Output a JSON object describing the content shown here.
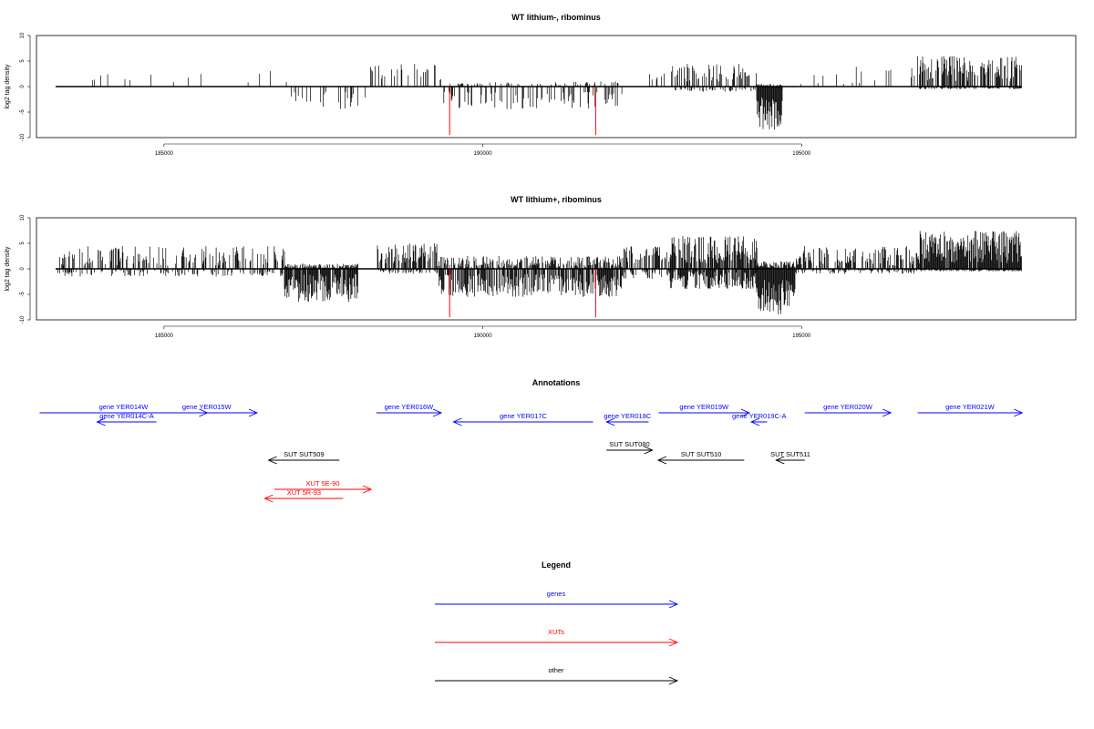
{
  "panels": [
    {
      "title": "WT lithium-, ribominus",
      "ylabel": "log2 tag density",
      "ylim": [
        -10,
        10
      ],
      "yticks": [
        10,
        5,
        0,
        -5,
        -10
      ],
      "xlim": [
        183000,
        199300
      ],
      "xticks": [
        185000,
        190000,
        195000
      ],
      "red_markers_x": [
        189480,
        191770
      ],
      "chart_data": {
        "type": "bar",
        "note_series": "dense tag-density bars, + strand above / - strand below",
        "segments": [
          {
            "start": 183300,
            "end": 186000,
            "pos": [
              0.5,
              3.5
            ],
            "neg": [
              0,
              0
            ],
            "density": 0.02
          },
          {
            "start": 186000,
            "end": 186950,
            "pos": [
              0.5,
              3.5
            ],
            "neg": [
              0,
              0
            ],
            "density": 0.02
          },
          {
            "start": 186950,
            "end": 188200,
            "pos": [
              0,
              0
            ],
            "neg": [
              -1,
              -4.5
            ],
            "density": 0.09
          },
          {
            "start": 188200,
            "end": 189350,
            "pos": [
              1,
              4.5
            ],
            "neg": [
              0,
              0
            ],
            "density": 0.12
          },
          {
            "start": 189350,
            "end": 192200,
            "pos": [
              0,
              1
            ],
            "neg": [
              -1,
              -4.5
            ],
            "density": 0.12
          },
          {
            "start": 192400,
            "end": 192950,
            "pos": [
              0.5,
              3.5
            ],
            "neg": [
              0,
              0
            ],
            "density": 0.06
          },
          {
            "start": 192950,
            "end": 194300,
            "pos": [
              1,
              4.5
            ],
            "neg": [
              0,
              -1
            ],
            "density": 0.16
          },
          {
            "start": 194300,
            "end": 194700,
            "pos": [
              0,
              0.5
            ],
            "neg": [
              -2,
              -8.5
            ],
            "density": 0.5
          },
          {
            "start": 194700,
            "end": 195000,
            "pos": [
              0,
              0.5
            ],
            "neg": [
              0,
              -1
            ],
            "density": 0.02
          },
          {
            "start": 195000,
            "end": 196800,
            "pos": [
              0.5,
              4
            ],
            "neg": [
              0,
              0
            ],
            "density": 0.04
          },
          {
            "start": 196800,
            "end": 198450,
            "pos": [
              1,
              6
            ],
            "neg": [
              0,
              -0.5
            ],
            "density": 0.35
          }
        ]
      }
    },
    {
      "title": "WT lithium+, ribominus",
      "ylabel": "log2 tag density",
      "ylim": [
        -10,
        10
      ],
      "yticks": [
        10,
        5,
        0,
        -5,
        -10
      ],
      "xlim": [
        183000,
        199300
      ],
      "xticks": [
        185000,
        190000,
        195000
      ],
      "red_markers_x": [
        189480,
        191770
      ],
      "chart_data": {
        "type": "bar",
        "segments": [
          {
            "start": 183300,
            "end": 186900,
            "pos": [
              0.5,
              4.5
            ],
            "neg": [
              0,
              -1.5
            ],
            "density": 0.18
          },
          {
            "start": 186900,
            "end": 188050,
            "pos": [
              0,
              1
            ],
            "neg": [
              -1,
              -6.5
            ],
            "density": 0.45
          },
          {
            "start": 188050,
            "end": 188350,
            "pos": [
              0,
              0.5
            ],
            "neg": [
              0,
              0
            ],
            "density": 0.02
          },
          {
            "start": 188350,
            "end": 189300,
            "pos": [
              1,
              5
            ],
            "neg": [
              0,
              -1
            ],
            "density": 0.3
          },
          {
            "start": 189300,
            "end": 192200,
            "pos": [
              0,
              2.5
            ],
            "neg": [
              -1,
              -5.5
            ],
            "density": 0.35
          },
          {
            "start": 192200,
            "end": 192950,
            "pos": [
              1,
              4.5
            ],
            "neg": [
              0,
              -2
            ],
            "density": 0.25
          },
          {
            "start": 192950,
            "end": 194300,
            "pos": [
              1,
              6.5
            ],
            "neg": [
              -0.5,
              -4
            ],
            "density": 0.4
          },
          {
            "start": 194300,
            "end": 194900,
            "pos": [
              0,
              1.5
            ],
            "neg": [
              -2,
              -9
            ],
            "density": 0.5
          },
          {
            "start": 194900,
            "end": 196800,
            "pos": [
              0.5,
              4.5
            ],
            "neg": [
              0,
              -1
            ],
            "density": 0.25
          },
          {
            "start": 196800,
            "end": 198450,
            "pos": [
              1,
              7.5
            ],
            "neg": [
              0,
              -0.5
            ],
            "density": 0.45
          }
        ]
      }
    }
  ],
  "annotations_title": "Annotations",
  "annotations": [
    {
      "label": "gene YER014W",
      "kind": "gene",
      "start": 183050,
      "end": 185680,
      "dir": "+",
      "row": 0
    },
    {
      "label": "gene YER014C-A",
      "kind": "gene",
      "start": 183950,
      "end": 184880,
      "dir": "-",
      "row": 1
    },
    {
      "label": "gene YER015W",
      "kind": "gene",
      "start": 184880,
      "end": 186460,
      "dir": "+",
      "row": 0
    },
    {
      "label": "gene YER016W",
      "kind": "gene",
      "start": 188330,
      "end": 189350,
      "dir": "+",
      "row": 0
    },
    {
      "label": "gene YER017C",
      "kind": "gene",
      "start": 189540,
      "end": 191730,
      "dir": "-",
      "row": 1
    },
    {
      "label": "gene YER018C",
      "kind": "gene",
      "start": 191940,
      "end": 192600,
      "dir": "-",
      "row": 1
    },
    {
      "label": "gene YER019W",
      "kind": "gene",
      "start": 192760,
      "end": 194180,
      "dir": "+",
      "row": 0
    },
    {
      "label": "gene YER019C-A",
      "kind": "gene",
      "start": 194210,
      "end": 194460,
      "dir": "-",
      "row": 1
    },
    {
      "label": "gene YER020W",
      "kind": "gene",
      "start": 195050,
      "end": 196400,
      "dir": "+",
      "row": 0
    },
    {
      "label": "gene YER021W",
      "kind": "gene",
      "start": 196820,
      "end": 198460,
      "dir": "+",
      "row": 0
    },
    {
      "label": "SUT SUT509",
      "kind": "other",
      "start": 186640,
      "end": 187750,
      "dir": "-",
      "row": 2
    },
    {
      "label": "SUT SUT080",
      "kind": "other",
      "start": 191940,
      "end": 192660,
      "dir": "+",
      "row": 3
    },
    {
      "label": "SUT SUT510",
      "kind": "other",
      "start": 192750,
      "end": 194100,
      "dir": "-",
      "row": 2
    },
    {
      "label": "SUT SUT511",
      "kind": "other",
      "start": 194600,
      "end": 195050,
      "dir": "-",
      "row": 2
    },
    {
      "label": "XUT 5E-90",
      "kind": "xut",
      "start": 186730,
      "end": 188250,
      "dir": "+",
      "row": 4
    },
    {
      "label": "XUT 5R-93",
      "kind": "xut",
      "start": 186580,
      "end": 187810,
      "dir": "-",
      "row": 5
    }
  ],
  "legend_title": "Legend",
  "legend": [
    {
      "label": "genes",
      "color": "#0000ff"
    },
    {
      "label": "XUTs",
      "color": "#ff0000"
    },
    {
      "label": "other",
      "color": "#000000"
    }
  ],
  "colors": {
    "gene": "#0000ff",
    "xut": "#ff0000",
    "other": "#000000",
    "marker": "#ff0000"
  }
}
